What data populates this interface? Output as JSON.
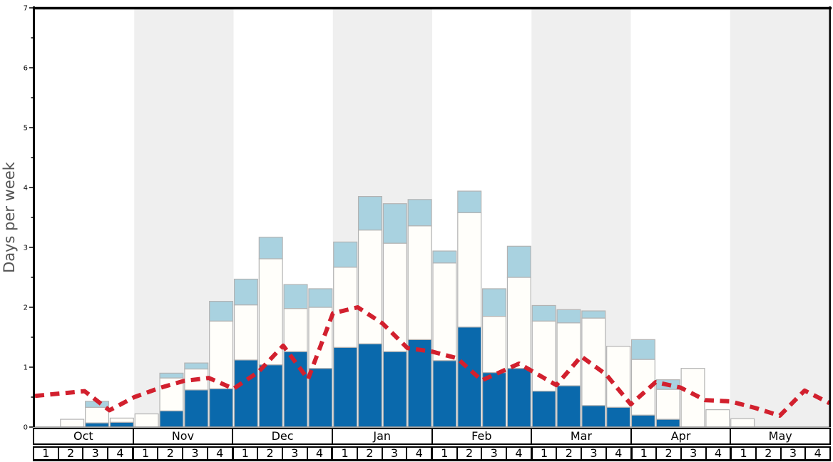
{
  "chart_data": {
    "type": "bar",
    "subtype": "stacked-bars-with-dashed-trend-line",
    "title": "",
    "ylabel": "Days per week",
    "xlabel": "",
    "ylim": [
      0,
      7
    ],
    "y_major_ticks": [
      "0",
      "1",
      "2",
      "3",
      "4",
      "5",
      "6",
      "7"
    ],
    "y_minor_step": 0.5,
    "grid": "off",
    "legend": "none",
    "months": [
      "Oct",
      "Nov",
      "Dec",
      "Jan",
      "Feb",
      "Mar",
      "Apr",
      "May"
    ],
    "weeks_per_month": [
      "1",
      "2",
      "3",
      "4"
    ],
    "shaded_month_indices": [
      1,
      3,
      5,
      7
    ],
    "band_color": "#efefef",
    "bar_border_color": "#b3b3b3",
    "series": [
      {
        "name": "dark-blue-days",
        "color": "#0a69ac",
        "values": [
          0,
          0,
          0.07,
          0.08,
          0,
          0.27,
          0.62,
          0.64,
          1.12,
          1.04,
          1.26,
          0.98,
          1.33,
          1.39,
          1.26,
          1.46,
          1.11,
          1.67,
          0.91,
          0.98,
          0.6,
          0.69,
          0.36,
          0.33,
          0.2,
          0.13,
          0,
          0,
          0,
          0,
          0,
          0
        ]
      },
      {
        "name": "white-days",
        "color": "#fffefa",
        "values": [
          0,
          0.13,
          0.26,
          0.07,
          0.22,
          0.55,
          0.35,
          1.13,
          0.92,
          1.77,
          0.72,
          1.02,
          1.34,
          1.9,
          1.81,
          1.9,
          1.63,
          1.91,
          0.94,
          1.52,
          1.17,
          1.05,
          1.46,
          1.02,
          0.93,
          0.5,
          0.98,
          0.29,
          0.14,
          0,
          0,
          0
        ]
      },
      {
        "name": "light-blue-days",
        "color": "#a9d2e0",
        "values": [
          0,
          0,
          0.1,
          0,
          0,
          0.08,
          0.1,
          0.33,
          0.43,
          0.36,
          0.4,
          0.31,
          0.42,
          0.56,
          0.66,
          0.44,
          0.2,
          0.36,
          0.46,
          0.52,
          0.26,
          0.22,
          0.12,
          0,
          0.33,
          0.16,
          0,
          0,
          0,
          0,
          0,
          0
        ]
      }
    ],
    "line_series": {
      "name": "red-dashed-trend",
      "color": "#d2202e",
      "dash": [
        13,
        8.5
      ],
      "points_week_value": [
        [
          0,
          0.52
        ],
        [
          1,
          0.56
        ],
        [
          2,
          0.6
        ],
        [
          3,
          0.28
        ],
        [
          4,
          0.5
        ],
        [
          5,
          0.65
        ],
        [
          6,
          0.77
        ],
        [
          7,
          0.82
        ],
        [
          8,
          0.64
        ],
        [
          9,
          0.92
        ],
        [
          10,
          1.36
        ],
        [
          11,
          0.8
        ],
        [
          12,
          1.9
        ],
        [
          13,
          2.0
        ],
        [
          14,
          1.73
        ],
        [
          15,
          1.32
        ],
        [
          16,
          1.26
        ],
        [
          17,
          1.15
        ],
        [
          18,
          0.78
        ],
        [
          19.5,
          1.06
        ],
        [
          21,
          0.7
        ],
        [
          22,
          1.18
        ],
        [
          23,
          0.88
        ],
        [
          24,
          0.38
        ],
        [
          25,
          0.75
        ],
        [
          26,
          0.66
        ],
        [
          27,
          0.45
        ],
        [
          28,
          0.43
        ],
        [
          29,
          0.32
        ],
        [
          30,
          0.19
        ],
        [
          31,
          0.61
        ],
        [
          32,
          0.4
        ]
      ]
    }
  }
}
